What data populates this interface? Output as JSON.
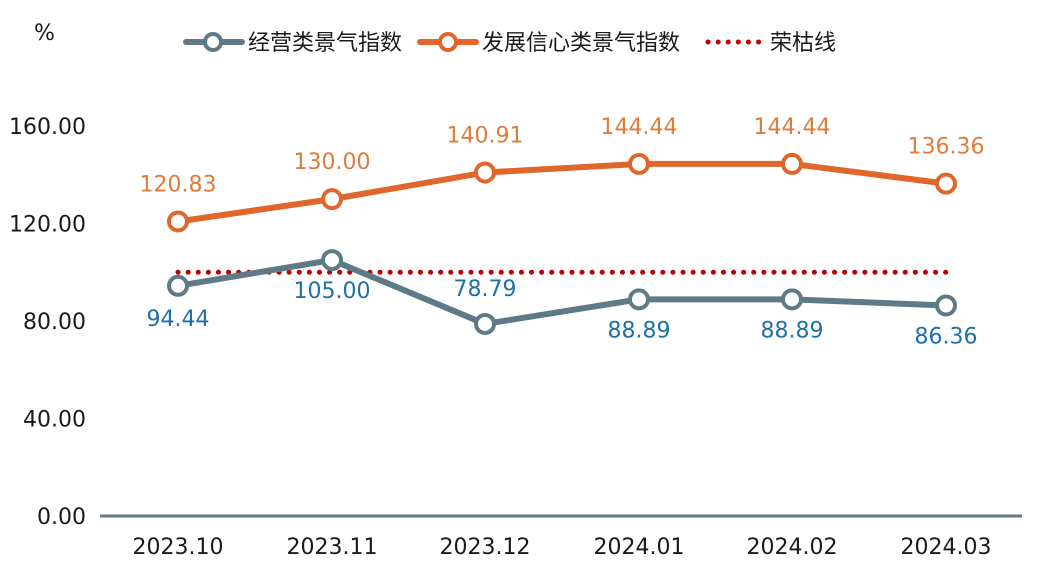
{
  "chart_data": {
    "type": "line",
    "y_unit": "%",
    "categories": [
      "2023.10",
      "2023.11",
      "2023.12",
      "2024.01",
      "2024.02",
      "2024.03"
    ],
    "ylim": [
      0,
      160
    ],
    "y_ticks": [
      "0.00",
      "40.00",
      "80.00",
      "120.00",
      "160.00"
    ],
    "grid": false,
    "legend_position": "top",
    "series": [
      {
        "name": "经营类景气指数",
        "color": "#5f7a87",
        "values": [
          94.44,
          105.0,
          78.79,
          88.89,
          88.89,
          86.36
        ],
        "labels": [
          "94.44",
          "105.00",
          "78.79",
          "88.89",
          "88.89",
          "86.36"
        ],
        "label_color": "#1f6fa8"
      },
      {
        "name": "发展信心类景气指数",
        "color": "#e0662c",
        "values": [
          120.83,
          130.0,
          140.91,
          144.44,
          144.44,
          136.36
        ],
        "labels": [
          "120.83",
          "130.00",
          "140.91",
          "144.44",
          "144.44",
          "136.36"
        ],
        "label_color": "#e07b3a"
      },
      {
        "name": "荣枯线",
        "color": "#c00000",
        "style": "dotted",
        "values": [
          100,
          100,
          100,
          100,
          100,
          100
        ]
      }
    ]
  }
}
